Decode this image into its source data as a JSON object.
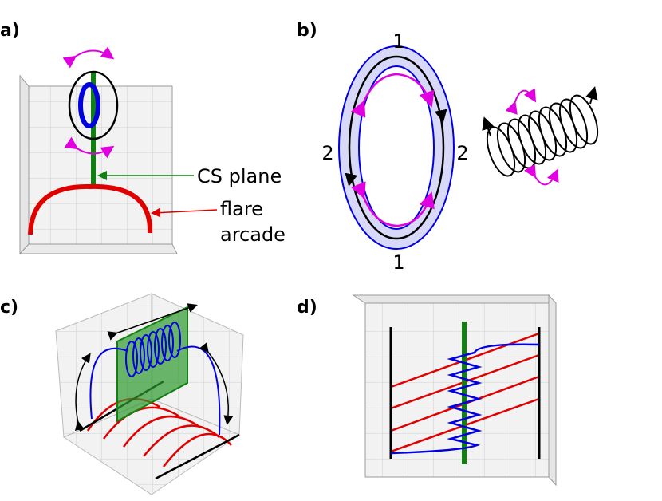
{
  "panels": [
    {
      "label": "a)",
      "annotations": [
        "CS plane",
        "flare",
        "arcade"
      ]
    },
    {
      "label": "b)",
      "ring_labels": [
        "1",
        "2",
        "2",
        "1"
      ]
    },
    {
      "label": "c)"
    },
    {
      "label": "d)"
    }
  ]
}
